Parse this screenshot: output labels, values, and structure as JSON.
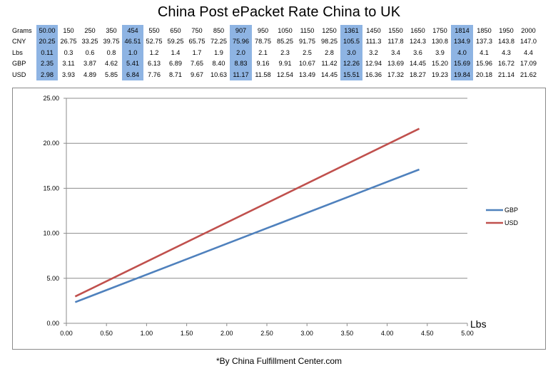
{
  "title": "China Post ePacket Rate China to UK",
  "footnote": "*By China Fulfillment Center.com",
  "table": {
    "rows": [
      {
        "label": "Grams",
        "values": [
          "50.00",
          "150",
          "250",
          "350",
          "454",
          "550",
          "650",
          "750",
          "850",
          "907",
          "950",
          "1050",
          "1150",
          "1250",
          "1361",
          "1450",
          "1550",
          "1650",
          "1750",
          "1814",
          "1850",
          "1950",
          "2000"
        ]
      },
      {
        "label": "CNY",
        "values": [
          "20.25",
          "26.75",
          "33.25",
          "39.75",
          "46.51",
          "52.75",
          "59.25",
          "65.75",
          "72.25",
          "75.96",
          "78.75",
          "85.25",
          "91.75",
          "98.25",
          "105.5",
          "111.3",
          "117.8",
          "124.3",
          "130.8",
          "134.9",
          "137.3",
          "143.8",
          "147.0"
        ]
      },
      {
        "label": "Lbs",
        "values": [
          "0.11",
          "0.3",
          "0.6",
          "0.8",
          "1.0",
          "1.2",
          "1.4",
          "1.7",
          "1.9",
          "2.0",
          "2.1",
          "2.3",
          "2.5",
          "2.8",
          "3.0",
          "3.2",
          "3.4",
          "3.6",
          "3.9",
          "4.0",
          "4.1",
          "4.3",
          "4.4"
        ]
      },
      {
        "label": "GBP",
        "values": [
          "2.35",
          "3.11",
          "3.87",
          "4.62",
          "5.41",
          "6.13",
          "6.89",
          "7.65",
          "8.40",
          "8.83",
          "9.16",
          "9.91",
          "10.67",
          "11.42",
          "12.26",
          "12.94",
          "13.69",
          "14.45",
          "15.20",
          "15.69",
          "15.96",
          "16.72",
          "17.09"
        ]
      },
      {
        "label": "USD",
        "values": [
          "2.98",
          "3.93",
          "4.89",
          "5.85",
          "6.84",
          "7.76",
          "8.71",
          "9.67",
          "10.63",
          "11.17",
          "11.58",
          "12.54",
          "13.49",
          "14.45",
          "15.51",
          "16.36",
          "17.32",
          "18.27",
          "19.23",
          "19.84",
          "20.18",
          "21.14",
          "21.62"
        ]
      }
    ],
    "highlight_color": "#8eb4e3"
  },
  "chart_data": {
    "type": "line",
    "xlabel": "Lbs",
    "ylabel": "",
    "xlim": [
      0,
      5
    ],
    "ylim": [
      0,
      25
    ],
    "x_ticks": [
      "0.00",
      "0.50",
      "1.00",
      "1.50",
      "2.00",
      "2.50",
      "3.00",
      "3.50",
      "4.00",
      "4.50",
      "5.00"
    ],
    "y_ticks": [
      "0.00",
      "5.00",
      "10.00",
      "15.00",
      "20.00",
      "25.00"
    ],
    "grid": "horizontal",
    "legend_position": "right",
    "series": [
      {
        "name": "GBP",
        "color": "#4f81bd",
        "x": [
          0.11,
          4.4
        ],
        "y": [
          2.35,
          17.09
        ]
      },
      {
        "name": "USD",
        "color": "#c0504d",
        "x": [
          0.11,
          4.4
        ],
        "y": [
          2.98,
          21.62
        ]
      }
    ]
  }
}
